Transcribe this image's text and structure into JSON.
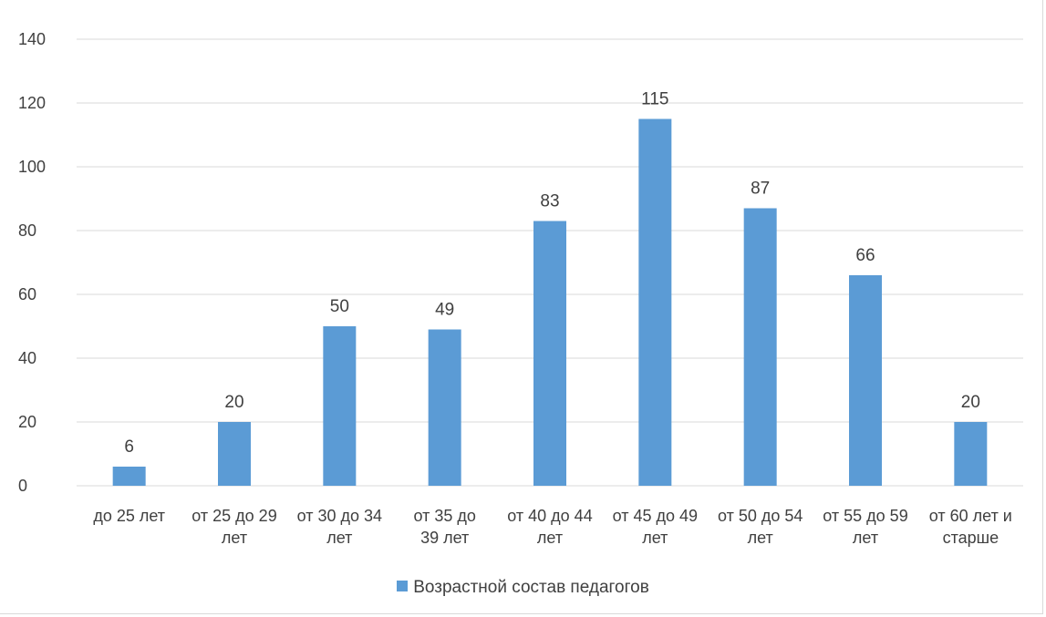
{
  "chart_data": {
    "type": "bar",
    "title": "",
    "xlabel": "",
    "ylabel": "",
    "categories": [
      "до 25 лет",
      "от 25 до 29 лет",
      "от 30 до 34 лет",
      "от  35 до 39 лет",
      "от 40 до 44 лет",
      "от 45 до 49 лет",
      "от 50 до 54 лет",
      "от 55 до 59 лет",
      "от 60 лет и старше"
    ],
    "category_lines": [
      [
        "до 25 лет"
      ],
      [
        "от 25 до 29",
        "лет"
      ],
      [
        "от 30 до 34",
        "лет"
      ],
      [
        "от  35 до",
        "39 лет"
      ],
      [
        "от 40 до 44",
        "лет"
      ],
      [
        "от 45 до 49",
        "лет"
      ],
      [
        "от 50 до 54",
        "лет"
      ],
      [
        "от 55 до 59",
        "лет"
      ],
      [
        "от 60 лет и",
        "старше"
      ]
    ],
    "series": [
      {
        "name": "Возрастной состав педагогов",
        "values": [
          6,
          20,
          50,
          49,
          83,
          115,
          87,
          66,
          20
        ],
        "color": "#5b9bd5"
      }
    ],
    "yticks": [
      0,
      20,
      40,
      60,
      80,
      100,
      120,
      140
    ],
    "ylim": [
      0,
      140
    ],
    "grid": true,
    "data_labels": true,
    "legend_position": "bottom",
    "gridline_color": "#d9d9d9",
    "text_color": "#404040"
  }
}
